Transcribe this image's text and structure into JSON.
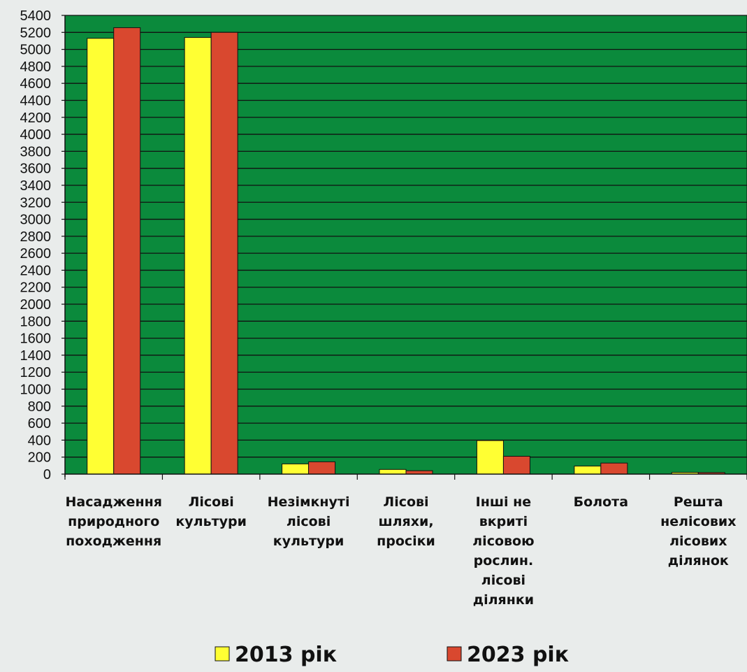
{
  "chart_data": {
    "type": "bar",
    "categories": [
      [
        "Насадження",
        "природного",
        "походження"
      ],
      [
        "Лісові",
        "культури"
      ],
      [
        "Незімкнуті",
        "лісові",
        "культури"
      ],
      [
        "Лісові",
        "шляхи,",
        "просіки"
      ],
      [
        "Інші не",
        "вкриті",
        "лісовою",
        "рослин.",
        "лісові",
        "ділянки"
      ],
      [
        "Болота"
      ],
      [
        "Решта",
        "нелісових",
        "лісових",
        "ділянок"
      ]
    ],
    "series": [
      {
        "name": "2013 рік",
        "color": "#ffff33",
        "values": [
          5130,
          5140,
          120,
          55,
          395,
          95,
          20
        ]
      },
      {
        "name": "2023 рік",
        "color": "#d9482f",
        "values": [
          5255,
          5200,
          145,
          40,
          210,
          130,
          18
        ]
      }
    ],
    "ylim": [
      0,
      5400
    ],
    "ytick_step": 200,
    "ytick_labels": [
      "0",
      "200",
      "400",
      "600",
      "800",
      "1000",
      "1200",
      "1400",
      "1600",
      "1800",
      "2000",
      "2200",
      "2400",
      "2600",
      "2800",
      "3000",
      "3200",
      "3400",
      "3600",
      "3800",
      "4000",
      "4200",
      "4400",
      "4600",
      "4800",
      "5000",
      "5200",
      "5400"
    ],
    "grid": true,
    "plot_background": "#0b8a3c",
    "legend_position": "bottom",
    "title": "",
    "xlabel": "",
    "ylabel": ""
  }
}
